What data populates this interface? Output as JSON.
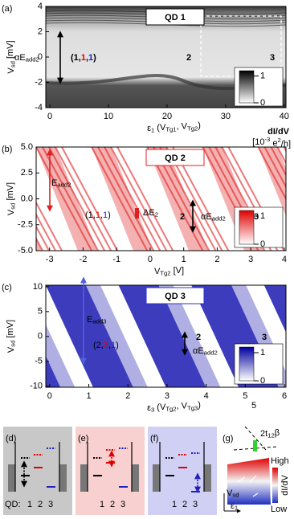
{
  "chart_data": [
    {
      "type": "heatmap",
      "panel": "(a)",
      "title": "QD 1",
      "title_color": "#000000",
      "colormap": "gray",
      "x_label": [
        "ε",
        "1",
        " (V",
        "Tg1",
        ", V",
        "Tg2",
        ")"
      ],
      "y_label": [
        "V",
        "sd",
        " [mV]"
      ],
      "xlim": [
        -0.7,
        40.3
      ],
      "xticks": [
        0,
        10,
        20,
        30,
        40
      ],
      "ylim": [
        -4,
        4
      ],
      "yticks": [
        -4,
        -2,
        0,
        2,
        4
      ],
      "colorbar_lim": [
        0,
        1.2
      ],
      "colorbar_ticks": [
        1,
        0
      ],
      "annotations": [
        {
          "parts": [
            "αE",
            "add2"
          ],
          "color": "#000000"
        },
        {
          "parts": [
            "(",
            "1",
            ",",
            "1",
            ",",
            "1",
            ")"
          ],
          "colors": [
            "#000000",
            "#000000",
            "#000000",
            "#e00000",
            "#000000",
            "#2020c0",
            "#000000"
          ]
        },
        {
          "parts": [
            "2"
          ],
          "color": "#000000"
        },
        {
          "parts": [
            "3"
          ],
          "color": "#000000"
        }
      ]
    },
    {
      "type": "heatmap",
      "panel": "(b)",
      "title": "QD 2",
      "title_color": "#e02020",
      "colormap": "red",
      "x_label": [
        "V",
        "Tg2",
        " [V]"
      ],
      "y_label": [
        "V",
        "sd",
        " [mV]"
      ],
      "xlim": [
        -3.4,
        4.05
      ],
      "xticks": [
        -3,
        -2,
        -1,
        0,
        1,
        2,
        3,
        4
      ],
      "ylim": [
        -5,
        5
      ],
      "yticks": [
        {
          "value": -5,
          "label": "-5.0"
        },
        {
          "value": -2.5,
          "label": "-2.5"
        },
        {
          "value": 0,
          "label": "0.0"
        },
        {
          "value": 2.5,
          "label": "2.5"
        },
        {
          "value": 5,
          "label": "5.0"
        }
      ],
      "colorbar_lim": [
        0,
        1.2
      ],
      "colorbar_ticks": [
        1,
        0
      ],
      "colorbar_label": {
        "name": "dI/dV",
        "unit": [
          "[10",
          "-3",
          " e",
          "2",
          "/h]"
        ]
      },
      "annotations": [
        {
          "parts": [
            "E",
            "add2"
          ],
          "color": "#e02020"
        },
        {
          "parts": [
            "(",
            "1",
            ",",
            "1",
            ",",
            "1",
            ")"
          ],
          "colors": [
            "#000000",
            "#000000",
            "#000000",
            "#e00000",
            "#000000",
            "#2020c0",
            "#000000"
          ]
        },
        {
          "parts": [
            "ΔE",
            "2"
          ],
          "color": "#e02020"
        },
        {
          "parts": [
            "2"
          ],
          "color": "#e02020"
        },
        {
          "parts": [
            "αE",
            "add2"
          ],
          "color": "#000000"
        },
        {
          "parts": [
            "3"
          ],
          "color": "#e02020"
        }
      ]
    },
    {
      "type": "heatmap",
      "panel": "(c)",
      "title": "QD 3",
      "title_color": "#3030d0",
      "colormap": "blue",
      "x_label": [
        "ε",
        "3",
        " (V",
        "Tg2",
        ", V",
        "Tg3",
        ")"
      ],
      "y_label": [
        "V",
        "sd",
        " [mV]"
      ],
      "xlim": [
        -0.1,
        6.04
      ],
      "xticks": [
        0,
        1,
        2,
        3,
        4,
        5,
        6
      ],
      "ylim": [
        -10.2,
        10.3
      ],
      "yticks": [
        -10,
        -5,
        0,
        5,
        10
      ],
      "colorbar_lim": [
        0,
        1.2
      ],
      "colorbar_ticks": [
        1,
        0
      ],
      "annotations": [
        {
          "parts": [
            "E",
            "add3"
          ],
          "color": "#4040d0"
        },
        {
          "parts": [
            "(",
            "2",
            ",",
            "3",
            ",",
            "1",
            ")"
          ],
          "colors": [
            "#000000",
            "#000000",
            "#000000",
            "#e00000",
            "#000000",
            "#2020c0",
            "#000000"
          ]
        },
        {
          "parts": [
            "2"
          ],
          "color": "#3030d0"
        },
        {
          "parts": [
            "αE",
            "add2"
          ],
          "color": "#000000"
        },
        {
          "parts": [
            "3"
          ],
          "color": "#3030d0"
        },
        {
          "parts": [
            "5"
          ],
          "color": "#000000"
        }
      ]
    }
  ],
  "diagrams": [
    {
      "panel": "(d)",
      "labels": [
        "QD:",
        "1",
        "2",
        "3"
      ]
    },
    {
      "panel": "(e)",
      "labels": [
        "1",
        "2",
        "3"
      ]
    },
    {
      "panel": "(f)",
      "labels": [
        "1",
        "2",
        "3"
      ]
    }
  ],
  "inset": {
    "panel": "(g)",
    "coupling": [
      "2t",
      "12",
      "β"
    ],
    "high": "High",
    "low": "Low",
    "colorbar_label": "dI/dV",
    "y_axis": [
      "V",
      "sd"
    ],
    "x_axis": [
      "ε",
      "1"
    ]
  }
}
